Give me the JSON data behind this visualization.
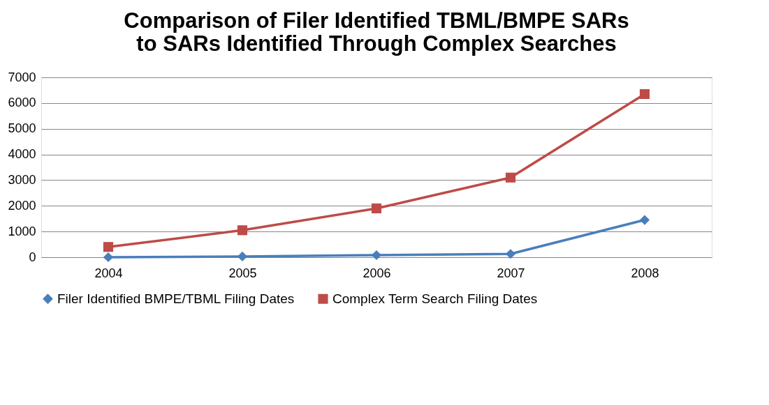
{
  "chart_data": {
    "type": "line",
    "title": [
      "Comparison of Filer Identified TBML/BMPE SARs",
      "to SARs Identified Through Complex Searches"
    ],
    "categories": [
      "2004",
      "2005",
      "2006",
      "2007",
      "2008"
    ],
    "series": [
      {
        "name": "Filer Identified BMPE/TBML Filing Dates",
        "color": "#4a7ebb",
        "marker": "diamond",
        "values": [
          0,
          30,
          80,
          130,
          1450
        ]
      },
      {
        "name": "Complex Term Search Filing Dates",
        "color": "#be4b48",
        "marker": "square",
        "values": [
          400,
          1050,
          1900,
          3100,
          6350
        ]
      }
    ],
    "ylim": [
      0,
      7000
    ],
    "yticks": [
      0,
      1000,
      2000,
      3000,
      4000,
      5000,
      6000,
      7000
    ],
    "grid": "y",
    "legend": "bottom",
    "line_style": "solid"
  }
}
